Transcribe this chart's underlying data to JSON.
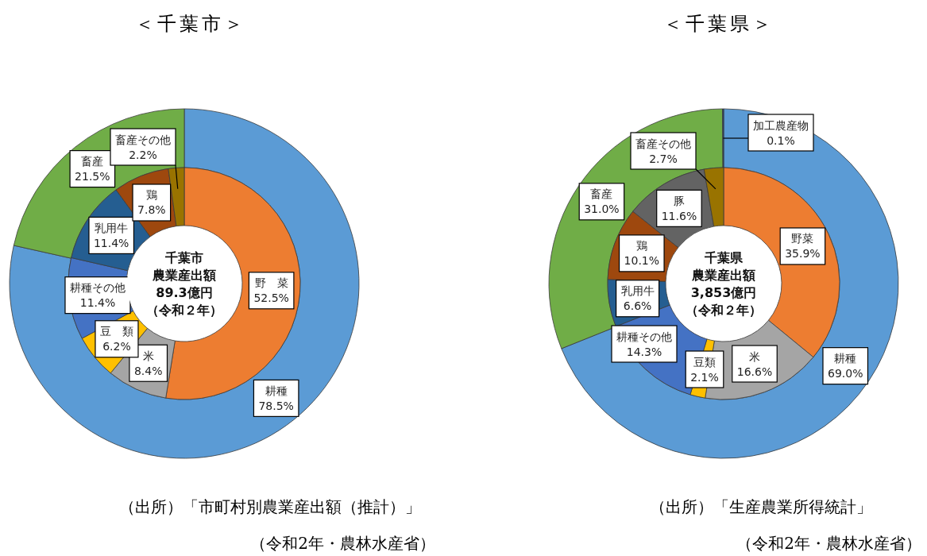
{
  "chart_data": [
    {
      "type": "donut",
      "title": "＜千葉市＞",
      "categories": [
        "耕種",
        "畜産"
      ],
      "values": [
        78.5,
        21.5
      ],
      "colors": [
        "#5b9bd5",
        "#70ad47"
      ],
      "value_labels": [
        "78.5%",
        "21.5%"
      ],
      "annotations": [
        "（出所）「市町村別農業産出額（推計）」",
        "（令和2年・農林水産省）"
      ]
    },
    {
      "type": "donut",
      "categories": [
        "野　菜",
        "米",
        "豆　類",
        "耕種その他",
        "乳用牛",
        "鶏",
        "畜産その他"
      ],
      "values": [
        52.5,
        8.4,
        6.2,
        11.4,
        11.4,
        7.8,
        2.2
      ],
      "colors": [
        "#ed7d31",
        "#a5a5a5",
        "#ffc000",
        "#4472c4",
        "#255e91",
        "#9e480e",
        "#997300"
      ],
      "value_labels": [
        "52.5%",
        "8.4%",
        "6.2%",
        "11.4%",
        "11.4%",
        "7.8%",
        "2.2%"
      ],
      "annotations": [
        "千葉市",
        "農業産出額",
        "89.3億円",
        "（令和２年）"
      ]
    },
    {
      "type": "donut",
      "title": "＜千葉県＞",
      "categories": [
        "耕種",
        "畜産",
        "加工農産物"
      ],
      "values": [
        69.0,
        31.0,
        0.1
      ],
      "colors": [
        "#5b9bd5",
        "#70ad47",
        "#264478"
      ],
      "value_labels": [
        "69.0%",
        "31.0%",
        "0.1%"
      ],
      "annotations": [
        "（出所）「生産農業所得統計」",
        "（令和2年・農林水産省）"
      ]
    },
    {
      "type": "donut",
      "categories": [
        "野菜",
        "米",
        "豆類",
        "耕種その他",
        "乳用牛",
        "鶏",
        "豚",
        "畜産その他"
      ],
      "values": [
        35.9,
        16.6,
        2.1,
        14.3,
        6.6,
        10.1,
        11.6,
        2.7
      ],
      "colors": [
        "#ed7d31",
        "#a5a5a5",
        "#ffc000",
        "#4472c4",
        "#255e91",
        "#9e480e",
        "#636363",
        "#997300"
      ],
      "value_labels": [
        "35.9%",
        "16.6%",
        "2.1%",
        "14.3%",
        "6.6%",
        "10.1%",
        "11.6%",
        "2.7%"
      ],
      "annotations": [
        "千葉県",
        "農業産出額",
        "3,853億円",
        "（令和２年）"
      ]
    }
  ]
}
